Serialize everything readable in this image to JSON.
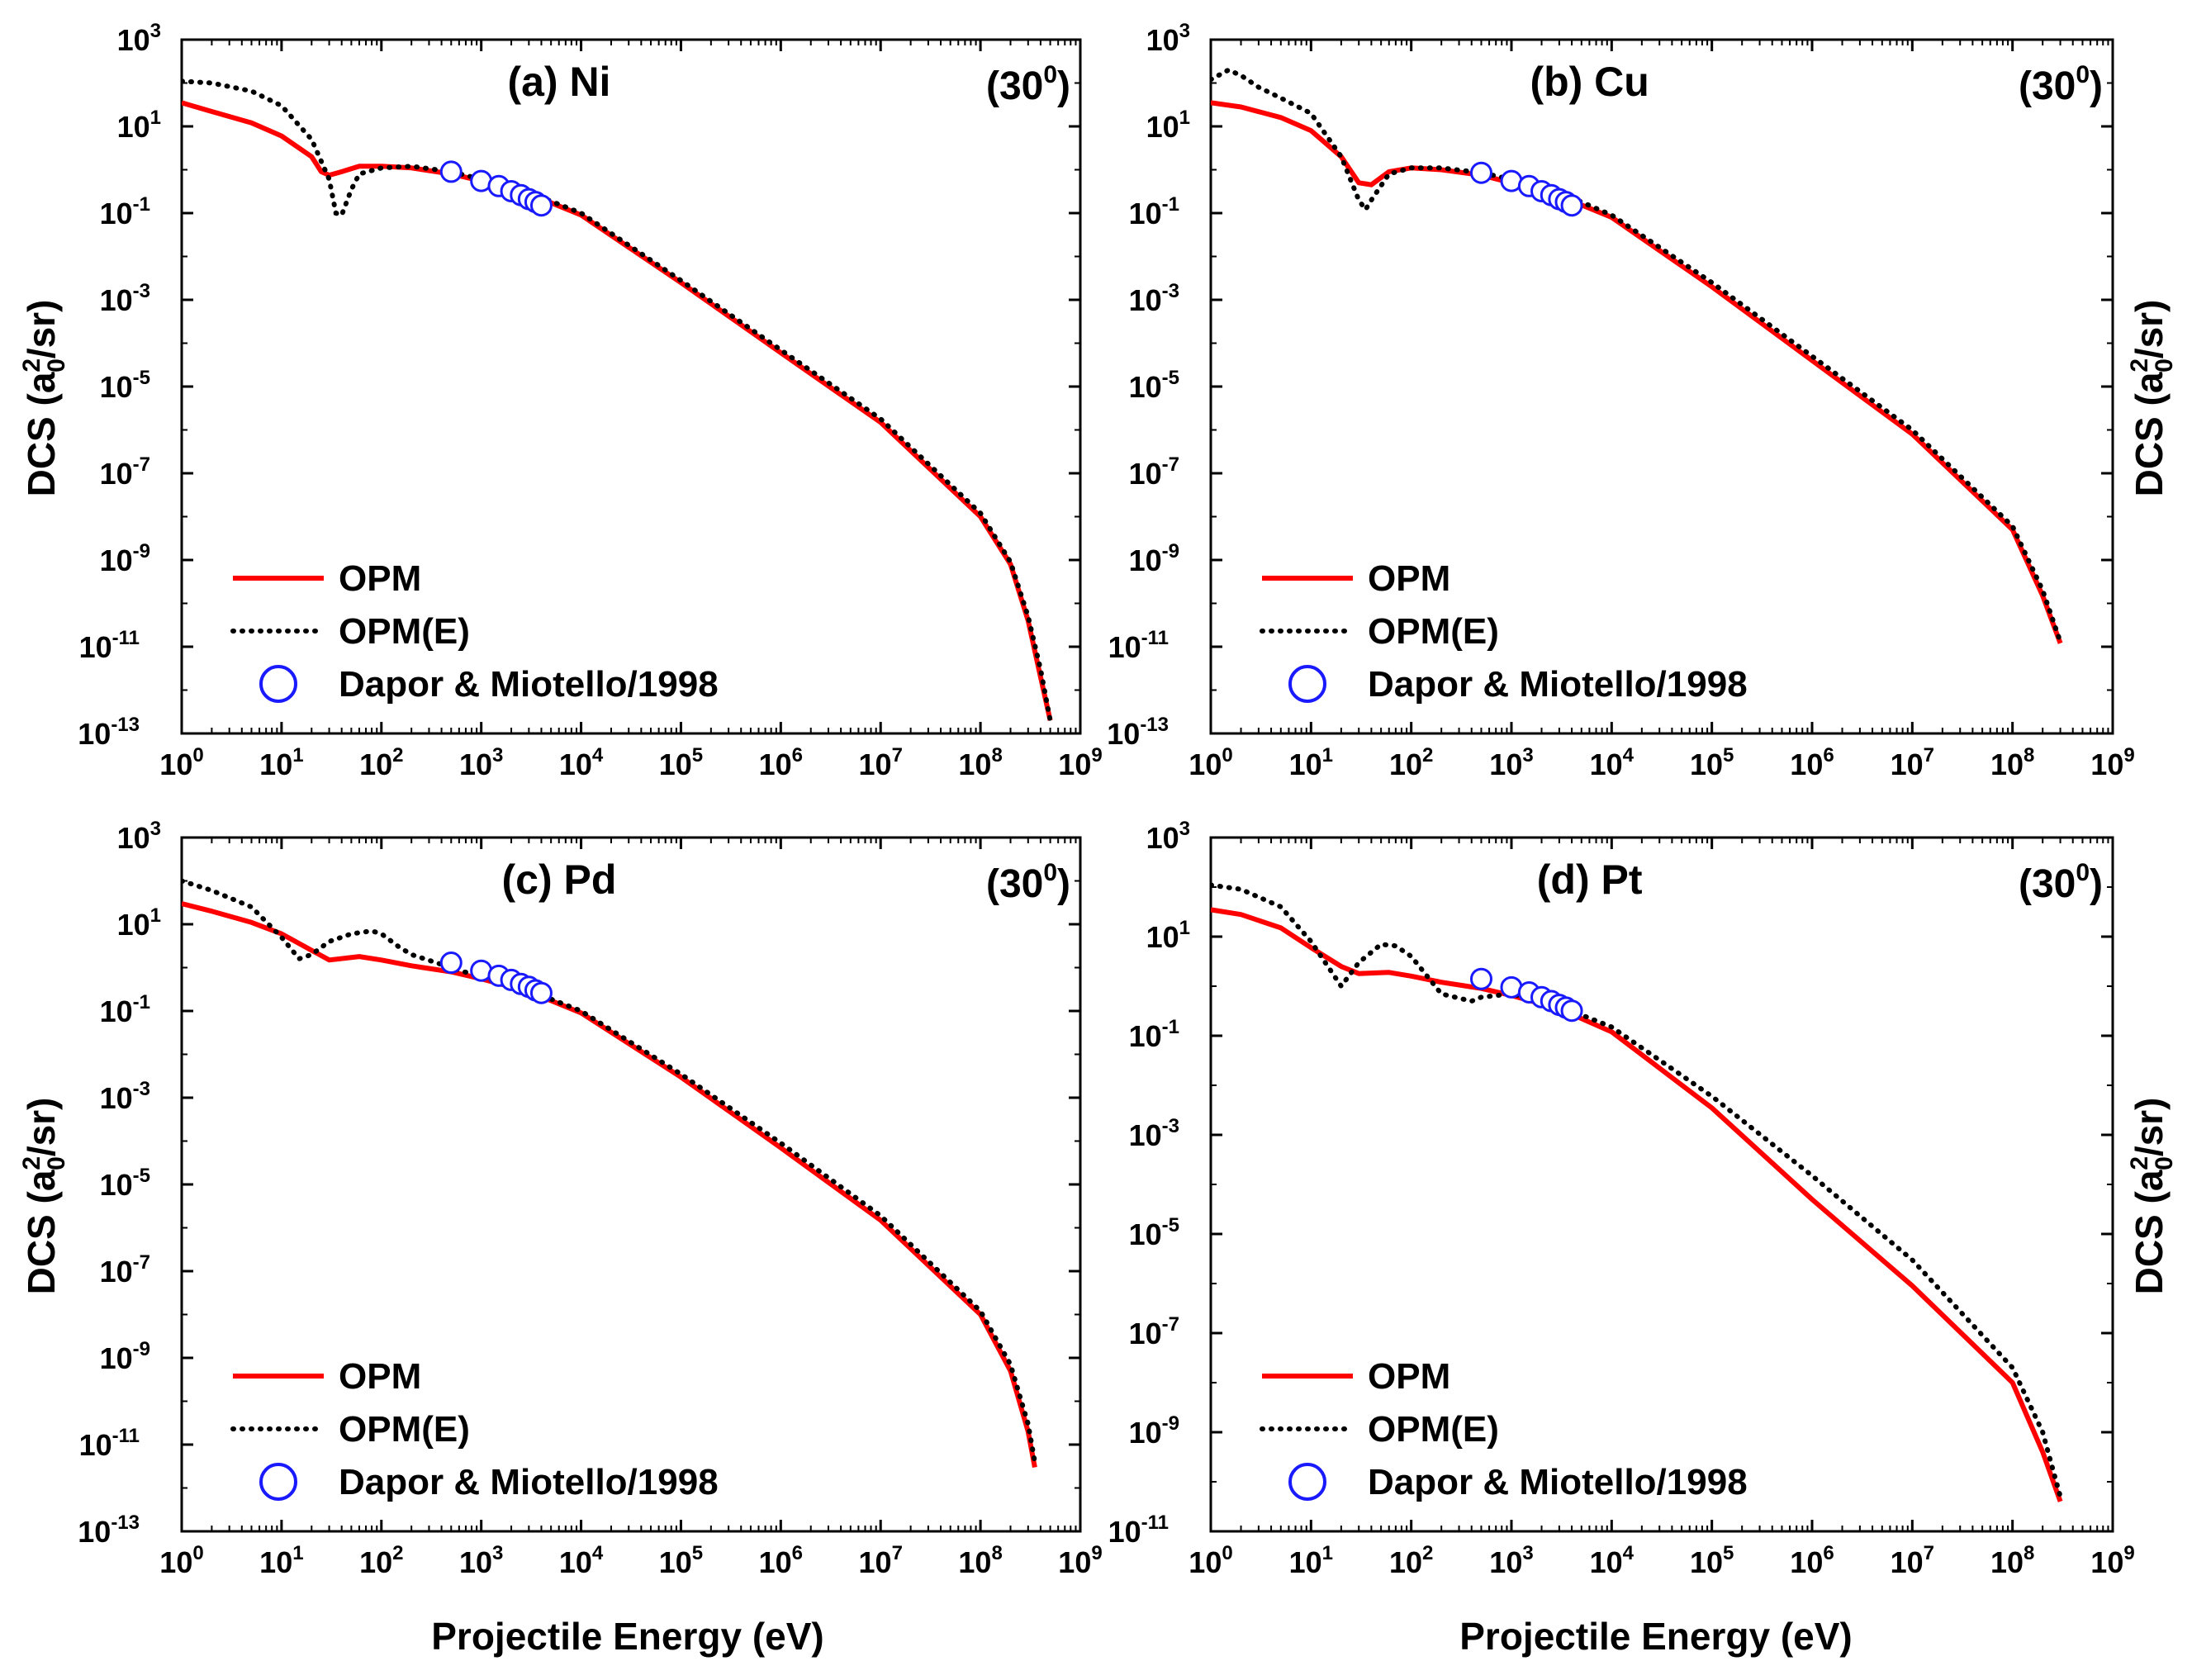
{
  "figure": {
    "xlabel": "Projectile Energy (eV)",
    "ylabel_main": "DCS (a",
    "ylabel_sup": "2",
    "ylabel_sub": "0",
    "ylabel_end": "/sr)"
  },
  "legend": {
    "opm": "OPM",
    "opme": "OPM(E)",
    "exp": "Dapor & Miotello/1998"
  },
  "colors": {
    "opm": "#ff0000",
    "opme": "#000000",
    "exp": "#1a1aff",
    "axis": "#000000"
  },
  "chart_data": [
    {
      "type": "line",
      "title": "(a) Ni",
      "angle_label": "(30",
      "angle_sup": "0",
      "angle_end": ")",
      "x_scale": "log",
      "y_scale": "log",
      "xlim": [
        1,
        1000000000
      ],
      "ylim": [
        1e-13,
        1000
      ],
      "x_tick_exponents": [
        0,
        1,
        2,
        3,
        4,
        5,
        6,
        7,
        8,
        9
      ],
      "y_tick_exponents": [
        -13,
        -11,
        -9,
        -7,
        -5,
        -3,
        -1,
        1,
        3
      ],
      "series": [
        {
          "name": "OPM",
          "x": [
            1,
            2,
            5,
            10,
            20,
            25,
            30,
            40,
            60,
            100,
            200,
            500,
            1000,
            3000,
            10000,
            100000,
            1000000,
            10000000,
            100000000,
            200000000,
            300000000,
            400000000,
            500000000
          ],
          "y": [
            35,
            22,
            12,
            6,
            2,
            0.9,
            0.75,
            0.9,
            1.2,
            1.2,
            1.1,
            0.8,
            0.55,
            0.28,
            0.09,
            0.0025,
            6e-05,
            1.5e-06,
            1e-08,
            8e-10,
            4e-11,
            2e-12,
            2e-13
          ]
        },
        {
          "name": "OPM(E)",
          "x": [
            1,
            2,
            5,
            10,
            20,
            30,
            35,
            40,
            50,
            60,
            100,
            200,
            500,
            1000,
            3000,
            10000,
            100000,
            1000000,
            10000000,
            100000000,
            200000000,
            300000000,
            400000000,
            500000000
          ],
          "y": [
            110,
            100,
            65,
            30,
            5,
            0.6,
            0.1,
            0.09,
            0.35,
            0.8,
            1.1,
            1.2,
            0.9,
            0.6,
            0.3,
            0.1,
            0.0028,
            7e-05,
            1.8e-06,
            1.2e-08,
            9e-10,
            5e-11,
            3e-12,
            2e-13
          ]
        },
        {
          "name": "Dapor & Miotello/1998",
          "x": [
            500,
            1000,
            1500,
            2000,
            2500,
            3000,
            3500,
            4000
          ],
          "y": [
            0.9,
            0.55,
            0.42,
            0.32,
            0.26,
            0.21,
            0.18,
            0.15
          ]
        }
      ]
    },
    {
      "type": "line",
      "title": "(b) Cu",
      "angle_label": "(30",
      "angle_sup": "0",
      "angle_end": ")",
      "x_scale": "log",
      "y_scale": "log",
      "xlim": [
        1,
        1000000000
      ],
      "ylim": [
        1e-13,
        1000
      ],
      "x_tick_exponents": [
        0,
        1,
        2,
        3,
        4,
        5,
        6,
        7,
        8,
        9
      ],
      "y_tick_exponents": [
        -13,
        -11,
        -9,
        -7,
        -5,
        -3,
        -1,
        1,
        3
      ],
      "series": [
        {
          "name": "OPM",
          "x": [
            1,
            2,
            5,
            10,
            20,
            30,
            40,
            60,
            100,
            200,
            500,
            1000,
            3000,
            10000,
            100000,
            1000000,
            10000000,
            100000000,
            200000000,
            300000000
          ],
          "y": [
            35,
            28,
            16,
            8,
            2,
            0.5,
            0.45,
            0.9,
            1.1,
            1.0,
            0.75,
            0.5,
            0.25,
            0.08,
            0.002,
            4e-05,
            8e-07,
            5e-09,
            1.5e-10,
            1.2e-11
          ]
        },
        {
          "name": "OPM(E)",
          "x": [
            1,
            1.5,
            2,
            3,
            5,
            10,
            20,
            30,
            35,
            40,
            60,
            100,
            200,
            500,
            1000,
            3000,
            10000,
            100000,
            1000000,
            10000000,
            100000000,
            200000000,
            300000000
          ],
          "y": [
            120,
            200,
            150,
            80,
            45,
            20,
            2,
            0.2,
            0.12,
            0.2,
            0.8,
            1.1,
            1.1,
            0.85,
            0.6,
            0.3,
            0.09,
            0.0025,
            5e-05,
            1e-06,
            6e-09,
            2e-10,
            1.3e-11
          ]
        },
        {
          "name": "Dapor & Miotello/1998",
          "x": [
            500,
            1000,
            1500,
            2000,
            2500,
            3000,
            3500,
            4000
          ],
          "y": [
            0.85,
            0.55,
            0.42,
            0.32,
            0.26,
            0.21,
            0.18,
            0.15
          ]
        }
      ]
    },
    {
      "type": "line",
      "title": "(c) Pd",
      "angle_label": "(30",
      "angle_sup": "0",
      "angle_end": ")",
      "x_scale": "log",
      "y_scale": "log",
      "xlim": [
        1,
        1000000000
      ],
      "ylim": [
        1e-13,
        1000
      ],
      "x_tick_exponents": [
        0,
        1,
        2,
        3,
        4,
        5,
        6,
        7,
        8,
        9
      ],
      "y_tick_exponents": [
        -13,
        -11,
        -9,
        -7,
        -5,
        -3,
        -1,
        1,
        3
      ],
      "series": [
        {
          "name": "OPM",
          "x": [
            1,
            2,
            5,
            10,
            20,
            30,
            60,
            100,
            200,
            500,
            1000,
            3000,
            10000,
            100000,
            1000000,
            10000000,
            100000000,
            200000000,
            300000000,
            350000000
          ],
          "y": [
            30,
            20,
            11,
            6,
            2.5,
            1.5,
            1.8,
            1.5,
            1.1,
            0.8,
            0.55,
            0.28,
            0.09,
            0.003,
            7e-05,
            1.5e-06,
            1e-08,
            5e-10,
            2e-11,
            3e-12
          ]
        },
        {
          "name": "OPM(E)",
          "x": [
            1,
            2,
            5,
            10,
            15,
            20,
            30,
            50,
            80,
            100,
            150,
            200,
            500,
            1000,
            3000,
            10000,
            100000,
            1000000,
            10000000,
            100000000,
            200000000,
            300000000,
            350000000
          ],
          "y": [
            100,
            60,
            25,
            5,
            1.6,
            2,
            4,
            6,
            7,
            6,
            3,
            2,
            1,
            0.6,
            0.3,
            0.1,
            0.0035,
            9e-05,
            1.9e-06,
            1.2e-08,
            7e-10,
            3e-11,
            4e-12
          ]
        },
        {
          "name": "Dapor & Miotello/1998",
          "x": [
            500,
            1000,
            1500,
            2000,
            2500,
            3000,
            3500,
            4000
          ],
          "y": [
            1.3,
            0.85,
            0.65,
            0.52,
            0.42,
            0.36,
            0.3,
            0.26
          ]
        }
      ]
    },
    {
      "type": "line",
      "title": "(d) Pt",
      "angle_label": "(30",
      "angle_sup": "0",
      "angle_end": ")",
      "x_scale": "log",
      "y_scale": "log",
      "xlim": [
        1,
        1000000000
      ],
      "ylim": [
        1e-11,
        1000
      ],
      "x_tick_exponents": [
        0,
        1,
        2,
        3,
        4,
        5,
        6,
        7,
        8,
        9
      ],
      "y_tick_exponents": [
        -11,
        -9,
        -7,
        -5,
        -3,
        -1,
        1,
        3
      ],
      "series": [
        {
          "name": "OPM",
          "x": [
            1,
            2,
            5,
            10,
            20,
            30,
            60,
            100,
            200,
            500,
            1000,
            3000,
            10000,
            100000,
            1000000,
            10000000,
            100000000,
            200000000,
            300000000
          ],
          "y": [
            35,
            28,
            15,
            6,
            2.5,
            1.8,
            1.9,
            1.6,
            1.2,
            0.9,
            0.65,
            0.35,
            0.12,
            0.0035,
            5e-05,
            9e-07,
            1e-08,
            4e-10,
            4e-11
          ]
        },
        {
          "name": "OPM(E)",
          "x": [
            1,
            2,
            5,
            10,
            20,
            30,
            50,
            70,
            100,
            200,
            400,
            500,
            1000,
            3000,
            10000,
            100000,
            1000000,
            10000000,
            100000000,
            200000000,
            300000000
          ],
          "y": [
            110,
            90,
            40,
            8,
            1,
            3,
            7,
            6.5,
            4,
            0.7,
            0.5,
            0.6,
            0.7,
            0.4,
            0.15,
            0.006,
            0.00015,
            3e-06,
            2e-08,
            1e-09,
            5e-11
          ]
        },
        {
          "name": "Dapor & Miotello/1998",
          "x": [
            500,
            1000,
            1500,
            2000,
            2500,
            3000,
            3500,
            4000
          ],
          "y": [
            1.4,
            0.95,
            0.75,
            0.6,
            0.5,
            0.42,
            0.37,
            0.32
          ]
        }
      ]
    }
  ]
}
